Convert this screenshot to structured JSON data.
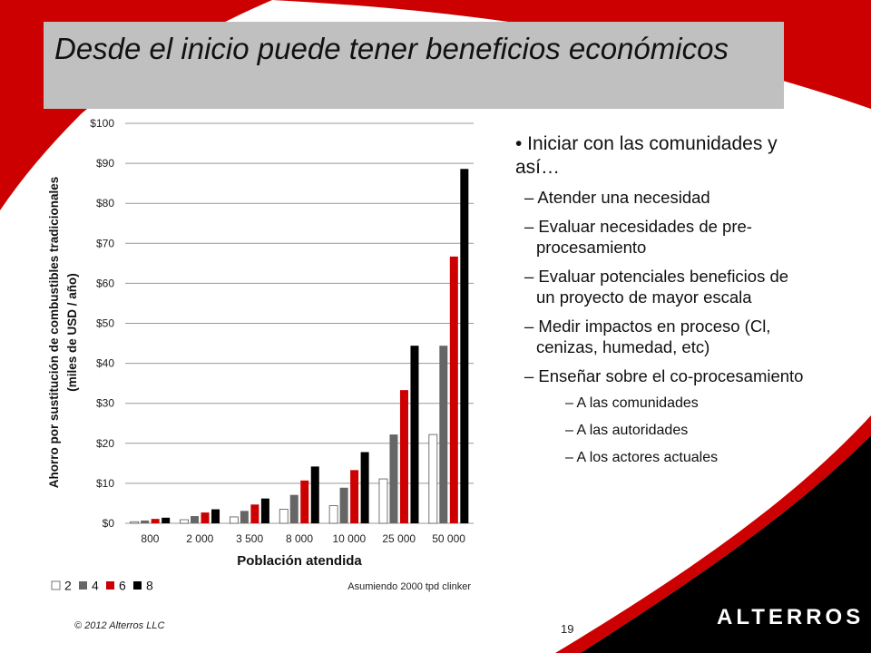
{
  "slide": {
    "title": "Desde el inicio puede tener beneficios económicos",
    "copyright": "© 2012 Alterros LLC",
    "page_number": "19",
    "logo_text": "ALTERROS",
    "colors": {
      "accent_red": "#cc0000",
      "title_bar": "#c0c0c0",
      "footer_black": "#000000"
    }
  },
  "bullets": [
    {
      "level": 1,
      "text": "• Iniciar con las comunidades y así…"
    },
    {
      "level": 2,
      "text": "– Atender una necesidad"
    },
    {
      "level": 2,
      "text": "– Evaluar necesidades de pre-procesamiento"
    },
    {
      "level": 2,
      "text": "– Evaluar potenciales beneficios de un proyecto de mayor escala"
    },
    {
      "level": 2,
      "text": "– Medir impactos en proceso (Cl, cenizas, humedad, etc)"
    },
    {
      "level": 2,
      "text": "– Enseñar sobre el co-procesamiento"
    },
    {
      "level": 3,
      "text": "– A las comunidades"
    },
    {
      "level": 3,
      "text": "– A las autoridades"
    },
    {
      "level": 3,
      "text": "– A los actores actuales"
    }
  ],
  "chart_data": {
    "type": "bar",
    "title": "",
    "xlabel": "Población atendida",
    "ylabel": "Ahorro por sustitución de combustibles tradicionales (miles de USD / año)",
    "ylabel_lines": [
      "Ahorro por sustitución de combustibles tradicionales",
      "(miles de USD / año)"
    ],
    "ylim": [
      0,
      100
    ],
    "ytick_labels": [
      "$0",
      "$10",
      "$20",
      "$30",
      "$40",
      "$50",
      "$60",
      "$70",
      "$80",
      "$90",
      "$100"
    ],
    "grid": true,
    "legend_position": "bottom-left",
    "annotation": "Asumiendo 2000 tpd clinker",
    "categories": [
      "800",
      "2 000",
      "3 500",
      "8 000",
      "10 000",
      "25 000",
      "50 000"
    ],
    "series": [
      {
        "name": "2",
        "color": "#ffffff",
        "values": [
          0.4,
          0.9,
          1.6,
          3.5,
          4.4,
          11.1,
          22.2
        ]
      },
      {
        "name": "4",
        "color": "#666666",
        "values": [
          0.7,
          1.8,
          3.1,
          7.1,
          8.9,
          22.2,
          44.4
        ]
      },
      {
        "name": "6",
        "color": "#cc0000",
        "values": [
          1.1,
          2.7,
          4.7,
          10.7,
          13.3,
          33.3,
          66.7
        ]
      },
      {
        "name": "8",
        "color": "#000000",
        "values": [
          1.4,
          3.5,
          6.2,
          14.2,
          17.8,
          44.4,
          88.6
        ]
      }
    ]
  }
}
